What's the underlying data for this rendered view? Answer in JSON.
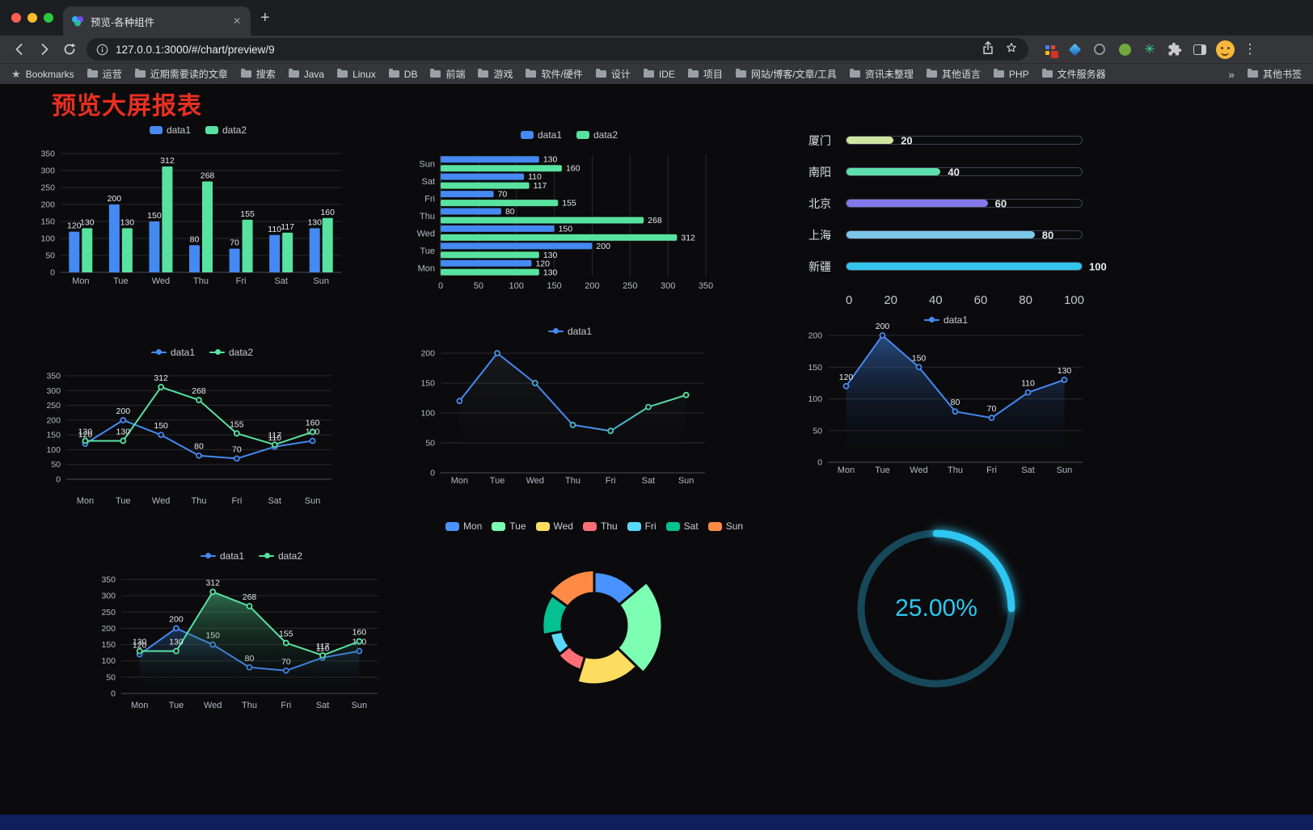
{
  "browser": {
    "tab_title": "预览-各种组件",
    "url": "127.0.0.1:3000/#/chart/preview/9",
    "icons": {
      "close_tab": "✕",
      "new_tab": "+",
      "menu": "⋮",
      "bookmarks_star": "★",
      "ext_star": "✳"
    },
    "bookmarks_bar": {
      "bookmarks_label": "Bookmarks",
      "folders": [
        "运营",
        "近期需要读的文章",
        "搜索",
        "Java",
        "Linux",
        "DB",
        "前端",
        "游戏",
        "软件/硬件",
        "设计",
        "IDE",
        "项目",
        "网站/博客/文章/工具",
        "资讯未整理",
        "其他语言",
        "PHP",
        "文件服务器"
      ],
      "overflow": "»",
      "other_bookmarks": "其他书签"
    }
  },
  "page": {
    "title": "预览大屏报表",
    "title_color": "#ea2f21"
  },
  "chart_data": [
    {
      "id": "grouped-bar",
      "type": "bar",
      "orientation": "vertical",
      "categories": [
        "Mon",
        "Tue",
        "Wed",
        "Thu",
        "Fri",
        "Sat",
        "Sun"
      ],
      "series": [
        {
          "name": "data1",
          "color": "#4589f2",
          "values": [
            120,
            200,
            150,
            80,
            70,
            110,
            130
          ]
        },
        {
          "name": "data2",
          "color": "#58e2a0",
          "values": [
            130,
            130,
            312,
            268,
            155,
            117,
            160
          ]
        }
      ],
      "ylim": [
        0,
        350
      ],
      "yticks": [
        0,
        50,
        100,
        150,
        200,
        250,
        300,
        350
      ],
      "value_labels": true,
      "legend": "top",
      "grid": true
    },
    {
      "id": "horizontal-bar",
      "type": "bar",
      "orientation": "horizontal",
      "categories": [
        "Mon",
        "Tue",
        "Wed",
        "Thu",
        "Fri",
        "Sat",
        "Sun"
      ],
      "categories_display_top_to_bottom": [
        "Sun",
        "Sat",
        "Fri",
        "Thu",
        "Wed",
        "Tue",
        "Mon"
      ],
      "series": [
        {
          "name": "data1",
          "color": "#4589f2",
          "values": [
            120,
            200,
            150,
            80,
            70,
            110,
            130
          ]
        },
        {
          "name": "data2",
          "color": "#58e2a0",
          "values": [
            130,
            130,
            312,
            268,
            155,
            117,
            160
          ]
        }
      ],
      "xlim": [
        0,
        350
      ],
      "xticks": [
        0,
        50,
        100,
        150,
        200,
        250,
        300,
        350
      ],
      "value_labels": true,
      "legend": "top",
      "grid": true
    },
    {
      "id": "capsule-progress",
      "type": "bar",
      "subtype": "capsule",
      "items": [
        {
          "label": "厦门",
          "value": 20,
          "color": "#cfe6a2"
        },
        {
          "label": "南阳",
          "value": 40,
          "color": "#5fe0ae"
        },
        {
          "label": "北京",
          "value": 60,
          "color": "#8577ec"
        },
        {
          "label": "上海",
          "value": 80,
          "color": "#7cc6e8"
        },
        {
          "label": "新疆",
          "value": 100,
          "color": "#33c5ee"
        }
      ],
      "xlim": [
        0,
        100
      ],
      "xticks": [
        0,
        20,
        40,
        60,
        80,
        100
      ]
    },
    {
      "id": "line-two-series",
      "type": "line",
      "categories": [
        "Mon",
        "Tue",
        "Wed",
        "Thu",
        "Fri",
        "Sat",
        "Sun"
      ],
      "series": [
        {
          "name": "data1",
          "color": "#4589f2",
          "values": [
            120,
            200,
            150,
            80,
            70,
            110,
            130
          ]
        },
        {
          "name": "data2",
          "color": "#58e2a0",
          "values": [
            130,
            130,
            312,
            268,
            155,
            117,
            160
          ]
        }
      ],
      "ylim": [
        0,
        350
      ],
      "yticks": [
        0,
        50,
        100,
        150,
        200,
        250,
        300,
        350
      ],
      "value_labels": true,
      "legend": "top",
      "grid": true
    },
    {
      "id": "gradient-line",
      "type": "line",
      "categories": [
        "Mon",
        "Tue",
        "Wed",
        "Thu",
        "Fri",
        "Sat",
        "Sun"
      ],
      "series": [
        {
          "name": "data1",
          "gradient": [
            "#4589f2",
            "#58e2a0"
          ],
          "area": true,
          "area_from": "rgba(150,160,185,0.10)",
          "values": [
            120,
            200,
            150,
            80,
            70,
            110,
            130
          ]
        }
      ],
      "ylim": [
        0,
        200
      ],
      "yticks": [
        0,
        50,
        100,
        150,
        200
      ],
      "value_labels": false,
      "legend": "top",
      "grid": true
    },
    {
      "id": "area-line",
      "type": "area",
      "categories": [
        "Mon",
        "Tue",
        "Wed",
        "Thu",
        "Fri",
        "Sat",
        "Sun"
      ],
      "series": [
        {
          "name": "data1",
          "color": "#4589f2",
          "area": true,
          "area_from": "rgba(69,137,242,0.50)",
          "values": [
            120,
            200,
            150,
            80,
            70,
            110,
            130
          ]
        }
      ],
      "ylim": [
        0,
        200
      ],
      "yticks": [
        0,
        50,
        100,
        150,
        200
      ],
      "value_labels": true,
      "legend": "top",
      "grid": true
    },
    {
      "id": "line-area-two-series",
      "type": "line",
      "categories": [
        "Mon",
        "Tue",
        "Wed",
        "Thu",
        "Fri",
        "Sat",
        "Sun"
      ],
      "series": [
        {
          "name": "data1",
          "color": "#4589f2",
          "area": true,
          "area_from": "rgba(69,137,242,0.30)",
          "values": [
            120,
            200,
            150,
            80,
            70,
            110,
            130
          ]
        },
        {
          "name": "data2",
          "color": "#58e2a0",
          "area": true,
          "area_from": "rgba(88,226,160,0.45)",
          "values": [
            130,
            130,
            312,
            268,
            155,
            117,
            160
          ]
        }
      ],
      "ylim": [
        0,
        350
      ],
      "yticks": [
        0,
        50,
        100,
        150,
        200,
        250,
        300,
        350
      ],
      "value_labels": true,
      "legend": "top",
      "grid": true
    },
    {
      "id": "rose-pie",
      "type": "pie",
      "subtype": "rose",
      "categories": [
        "Mon",
        "Tue",
        "Wed",
        "Thu",
        "Fri",
        "Sat",
        "Sun"
      ],
      "values": [
        120,
        200,
        150,
        80,
        70,
        110,
        130
      ],
      "colors": [
        "#4992ff",
        "#7cffb2",
        "#fddd60",
        "#ff6e76",
        "#58d9f9",
        "#05c091",
        "#ff8a45"
      ],
      "legend": "top"
    },
    {
      "id": "ring-progress",
      "type": "gauge",
      "subtype": "ring",
      "value": 25,
      "label": "25.00%",
      "color": "#2dc7f2",
      "track_color": "#16485a"
    }
  ]
}
